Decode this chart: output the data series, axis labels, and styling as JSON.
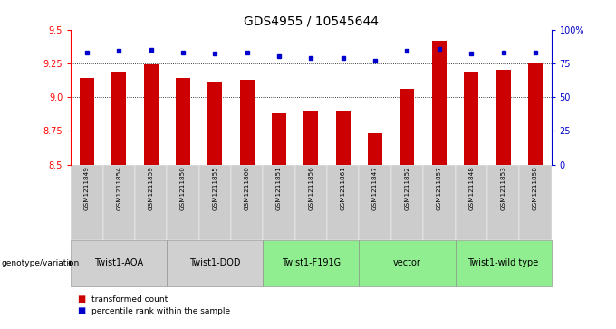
{
  "title": "GDS4955 / 10545644",
  "samples": [
    "GSM1211849",
    "GSM1211854",
    "GSM1211859",
    "GSM1211850",
    "GSM1211855",
    "GSM1211860",
    "GSM1211851",
    "GSM1211856",
    "GSM1211861",
    "GSM1211847",
    "GSM1211852",
    "GSM1211857",
    "GSM1211848",
    "GSM1211853",
    "GSM1211858"
  ],
  "bar_values": [
    9.14,
    9.19,
    9.24,
    9.14,
    9.11,
    9.13,
    8.88,
    8.89,
    8.9,
    8.73,
    9.06,
    9.42,
    9.19,
    9.2,
    9.25
  ],
  "percentile_values": [
    83,
    84,
    85,
    83,
    82,
    83,
    80,
    79,
    79,
    77,
    84,
    86,
    82,
    83,
    83
  ],
  "groups": [
    {
      "label": "Twist1-AQA",
      "start": 0,
      "end": 2,
      "color": "#d0d0d0"
    },
    {
      "label": "Twist1-DQD",
      "start": 3,
      "end": 5,
      "color": "#d0d0d0"
    },
    {
      "label": "Twist1-F191G",
      "start": 6,
      "end": 8,
      "color": "#90ee90"
    },
    {
      "label": "vector",
      "start": 9,
      "end": 11,
      "color": "#90ee90"
    },
    {
      "label": "Twist1-wild type",
      "start": 12,
      "end": 14,
      "color": "#90ee90"
    }
  ],
  "ylim_left": [
    8.5,
    9.5
  ],
  "ylim_right": [
    0,
    100
  ],
  "yticks_left": [
    8.5,
    8.75,
    9.0,
    9.25,
    9.5
  ],
  "yticks_right": [
    0,
    25,
    50,
    75,
    100
  ],
  "bar_color": "#cc0000",
  "dot_color": "#0000cc",
  "background_color": "#ffffff",
  "legend_label_bar": "transformed count",
  "legend_label_dot": "percentile rank within the sample",
  "genotype_label": "genotype/variation"
}
